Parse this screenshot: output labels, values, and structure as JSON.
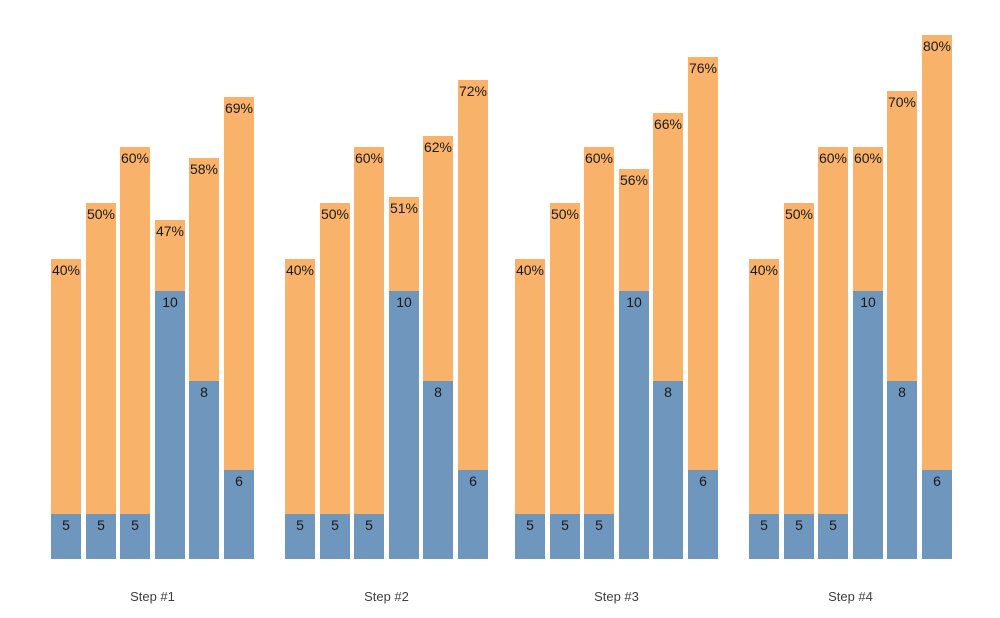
{
  "page": {
    "background_color": "#ffffff"
  },
  "chart_data": {
    "type": "bar",
    "variant": "grouped-stacked",
    "title": "",
    "xlabel": "",
    "ylabel": "",
    "axes_visible": false,
    "gridlines": false,
    "legend_position": "none",
    "bars_per_group": 6,
    "colors": {
      "count_segment": "#6F96BD",
      "total_segment": "#F9B26A",
      "bar_label_text": "#1a1a1a",
      "group_label_text": "#3f3f3f"
    },
    "label_formats": {
      "count": "{value}",
      "percent": "{value}%"
    },
    "groups": [
      {
        "label": "Step #1",
        "counts": [
          5,
          5,
          5,
          10,
          8,
          6
        ],
        "percents": [
          40,
          50,
          60,
          47,
          58,
          69
        ]
      },
      {
        "label": "Step #2",
        "counts": [
          5,
          5,
          5,
          10,
          8,
          6
        ],
        "percents": [
          40,
          50,
          60,
          51,
          62,
          72
        ]
      },
      {
        "label": "Step #3",
        "counts": [
          5,
          5,
          5,
          10,
          8,
          6
        ],
        "percents": [
          40,
          50,
          60,
          56,
          66,
          76
        ]
      },
      {
        "label": "Step #4",
        "counts": [
          5,
          5,
          5,
          10,
          8,
          6
        ],
        "percents": [
          40,
          50,
          60,
          60,
          70,
          80
        ]
      }
    ]
  }
}
